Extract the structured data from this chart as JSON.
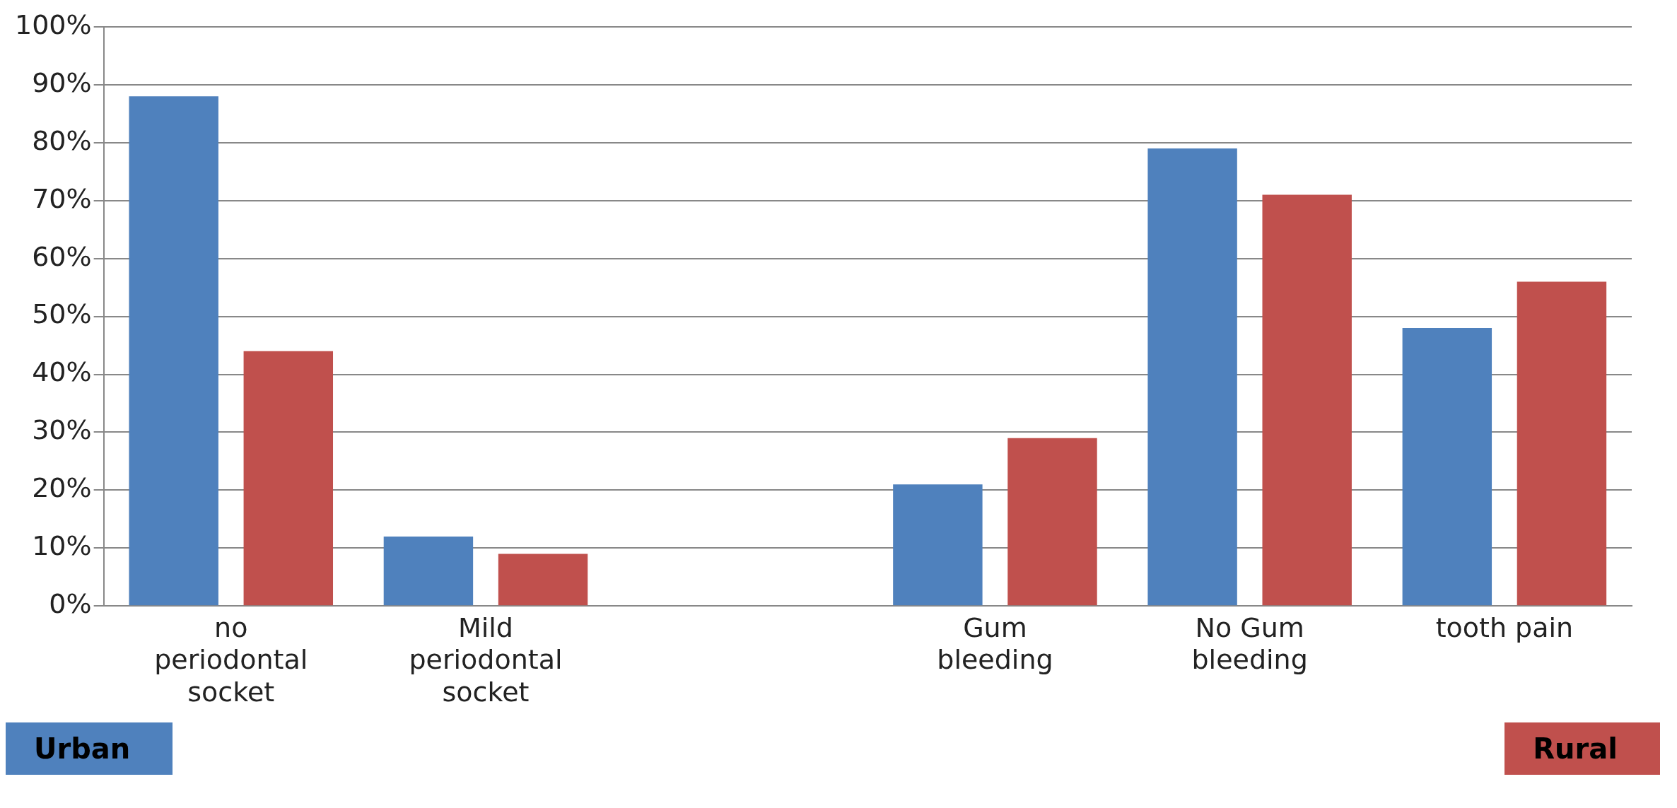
{
  "chart_data": {
    "type": "bar",
    "categories": [
      "no periodontal socket",
      "Mild periodontal socket",
      null,
      "Gum bleeding",
      "No Gum bleeding",
      "tooth pain"
    ],
    "series": [
      {
        "name": "Urban",
        "color": "#4f81bd",
        "values": [
          88,
          12,
          null,
          21,
          79,
          48
        ]
      },
      {
        "name": "Rural",
        "color": "#c0504d",
        "values": [
          44,
          9,
          null,
          29,
          71,
          56
        ]
      }
    ],
    "ylim": [
      0,
      100
    ],
    "yticks": [
      {
        "value": 0,
        "label": "0%"
      },
      {
        "value": 10,
        "label": "10%"
      },
      {
        "value": 20,
        "label": "20%"
      },
      {
        "value": 30,
        "label": "30%"
      },
      {
        "value": 40,
        "label": "40%"
      },
      {
        "value": 50,
        "label": "50%"
      },
      {
        "value": 60,
        "label": "60%"
      },
      {
        "value": 70,
        "label": "70%"
      },
      {
        "value": 80,
        "label": "80%"
      },
      {
        "value": 90,
        "label": "90%"
      },
      {
        "value": 100,
        "label": "100%"
      }
    ],
    "grid": "y",
    "legend": "bottom"
  }
}
